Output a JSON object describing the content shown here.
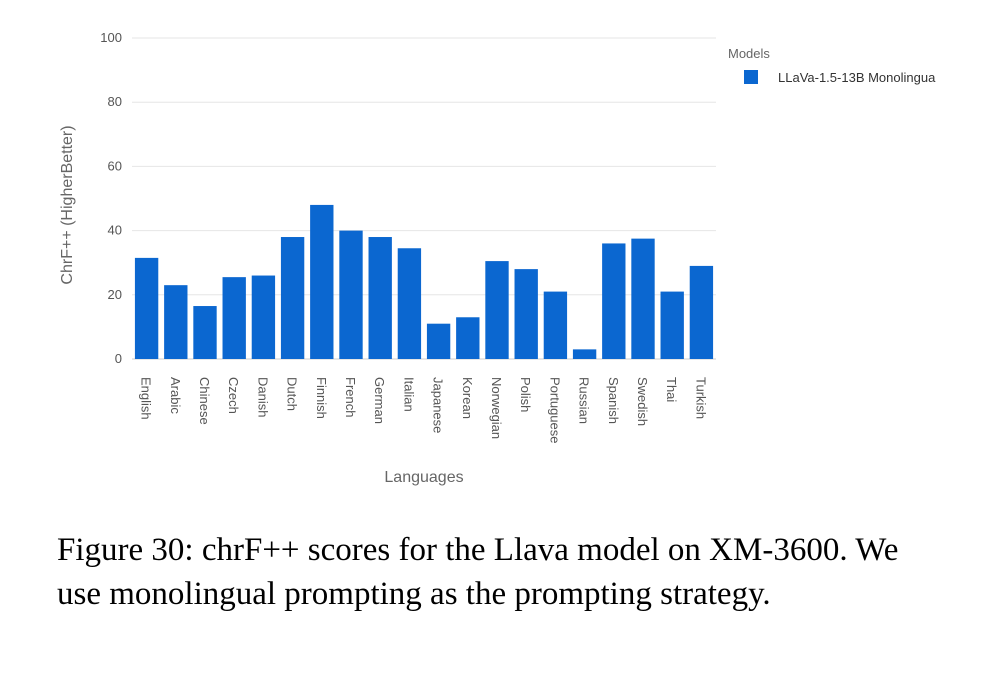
{
  "chart_data": {
    "type": "bar",
    "categories": [
      "English",
      "Arabic",
      "Chinese",
      "Czech",
      "Danish",
      "Dutch",
      "Finnish",
      "French",
      "German",
      "Italian",
      "Japanese",
      "Korean",
      "Norwegian",
      "Polish",
      "Portuguese",
      "Russian",
      "Spanish",
      "Swedish",
      "Thai",
      "Turkish"
    ],
    "series": [
      {
        "name": "LLaVa-1.5-13B Monolingua",
        "values": [
          31.5,
          23,
          16.5,
          25.5,
          26,
          38,
          48,
          40,
          38,
          34.5,
          11,
          13,
          30.5,
          28,
          21,
          3,
          36,
          37.5,
          21,
          29
        ]
      }
    ],
    "xlabel": "Languages",
    "ylabel": "ChrF++ (HigherBetter)",
    "ylim": [
      0,
      100
    ],
    "yticks": [
      "0",
      "20",
      "40",
      "60",
      "80",
      "100"
    ],
    "legend_title": "Models",
    "legend_position": "top-right",
    "grid": true,
    "bar_color": "#0b67d0"
  },
  "caption": "Figure 30: chrF++ scores for the Llava model on XM-3600. We use monolingual prompting as the prompting strategy."
}
